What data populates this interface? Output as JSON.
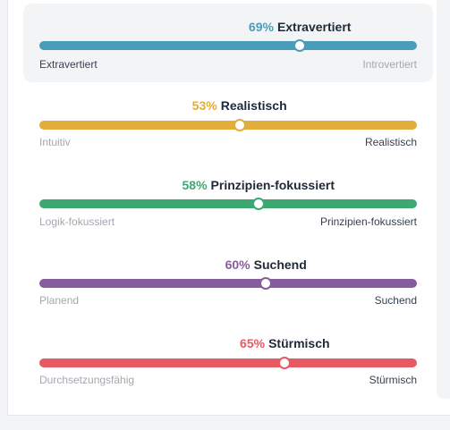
{
  "traits": [
    {
      "percent_label": "69%",
      "trait_label": "Extravertiert",
      "value": 0.69,
      "color": "#4a9dba",
      "left_label": "Extravertiert",
      "right_label": "Introvertiert",
      "highlighted_side": "left"
    },
    {
      "percent_label": "53%",
      "trait_label": "Realistisch",
      "value": 0.53,
      "color": "#e3ad3b",
      "left_label": "Intuitiv",
      "right_label": "Realistisch",
      "highlighted_side": "right"
    },
    {
      "percent_label": "58%",
      "trait_label": "Prinzipien-fokussiert",
      "value": 0.58,
      "color": "#3ea872",
      "left_label": "Logik-fokussiert",
      "right_label": "Prinzipien-fokussiert",
      "highlighted_side": "right"
    },
    {
      "percent_label": "60%",
      "trait_label": "Suchend",
      "value": 0.6,
      "color": "#875c9e",
      "left_label": "Planend",
      "right_label": "Suchend",
      "highlighted_side": "right"
    },
    {
      "percent_label": "65%",
      "trait_label": "Stürmisch",
      "value": 0.65,
      "color": "#e85a62",
      "left_label": "Durchsetzungsfähig",
      "right_label": "Stürmisch",
      "highlighted_side": "right"
    }
  ]
}
